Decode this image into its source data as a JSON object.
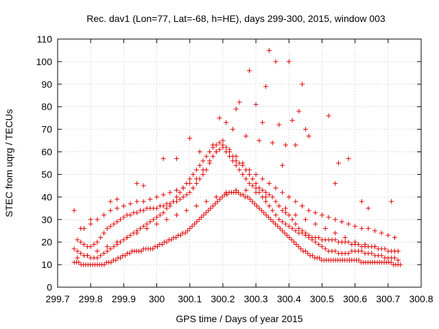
{
  "chart_data": {
    "type": "scatter",
    "title": "Rec. dav1 (Lon=77, Lat=-68, h=HE), days 299-300, 2015, window 003",
    "xlabel": "GPS time / Days of year 2015",
    "ylabel": "STEC from uqrg / TECUs",
    "xlim": [
      299.7,
      300.8
    ],
    "ylim": [
      0,
      110
    ],
    "xticks": [
      "299.7",
      "299.8",
      "299.9",
      "300",
      "300.1",
      "300.2",
      "300.3",
      "300.4",
      "300.5",
      "300.6",
      "300.7",
      "300.8"
    ],
    "yticks": [
      "0",
      "10",
      "20",
      "30",
      "40",
      "50",
      "60",
      "70",
      "80",
      "90",
      "100",
      "110"
    ],
    "grid": true,
    "marker": "plus",
    "color": "#e00000",
    "series": [
      {
        "x": [
          299.75,
          299.757,
          299.764,
          299.771,
          299.778,
          299.785,
          299.792,
          299.799,
          299.806,
          299.813,
          299.82,
          299.827,
          299.834,
          299.841,
          299.848,
          299.855,
          299.862,
          299.869,
          299.876,
          299.883,
          299.89,
          299.897,
          299.904,
          299.911,
          299.918,
          299.925,
          299.932,
          299.939,
          299.946,
          299.953,
          299.96,
          299.967,
          299.974,
          299.981,
          299.988,
          299.995,
          300.002,
          300.009,
          300.016,
          300.023,
          300.03,
          300.037,
          300.044,
          300.051,
          300.058,
          300.065,
          300.072,
          300.079,
          300.086,
          300.093,
          300.1,
          300.107,
          300.114,
          300.121,
          300.128,
          300.135,
          300.142,
          300.149,
          300.156,
          300.163,
          300.17,
          300.177,
          300.184,
          300.191,
          300.198,
          300.205,
          300.212,
          300.219,
          300.226,
          300.233,
          300.24,
          300.247,
          300.254,
          300.261,
          300.268,
          300.275,
          300.282,
          300.289,
          300.296,
          300.303,
          300.31,
          300.317,
          300.324,
          300.331,
          300.338,
          300.345,
          300.352,
          300.359,
          300.366,
          300.373,
          300.38,
          300.387,
          300.394,
          300.401,
          300.408,
          300.415,
          300.422,
          300.429,
          300.436,
          300.443,
          300.45,
          300.457,
          300.464,
          300.471,
          300.478,
          300.485,
          300.492,
          300.499,
          300.506,
          300.513,
          300.52,
          300.527,
          300.534,
          300.541,
          300.548,
          300.555,
          300.562,
          300.569,
          300.576,
          300.583,
          300.59,
          300.597,
          300.604,
          300.611,
          300.618,
          300.625,
          300.632,
          300.639,
          300.646,
          300.653,
          300.66,
          300.667,
          300.674,
          300.681,
          300.688,
          300.695,
          300.702,
          300.709,
          300.716,
          300.723,
          300.73,
          300.737
        ],
        "y": [
          11,
          11,
          11,
          10,
          10,
          10,
          10,
          10,
          10,
          10,
          10,
          10,
          10,
          10,
          11,
          11,
          11,
          12,
          12,
          13,
          13,
          14,
          14,
          15,
          15,
          16,
          16,
          16,
          16,
          16,
          17,
          17,
          17,
          17,
          17,
          18,
          18,
          19,
          19,
          20,
          20,
          21,
          21,
          22,
          22,
          23,
          23,
          24,
          24,
          25,
          26,
          27,
          28,
          29,
          30,
          31,
          32,
          33,
          34,
          35,
          36,
          37,
          38,
          39,
          40,
          41,
          41,
          42,
          42,
          42,
          42,
          42,
          41,
          41,
          40,
          40,
          39,
          38,
          37,
          36,
          35,
          34,
          33,
          32,
          31,
          30,
          29,
          28,
          27,
          26,
          25,
          24,
          23,
          22,
          21,
          20,
          19,
          18,
          17,
          16,
          16,
          15,
          14,
          14,
          13,
          13,
          13,
          12,
          12,
          12,
          12,
          12,
          12,
          12,
          12,
          12,
          12,
          12,
          12,
          12,
          12,
          12,
          12,
          12,
          11,
          11,
          11,
          11,
          11,
          11,
          11,
          11,
          11,
          11,
          11,
          11,
          11,
          11,
          10,
          10,
          10,
          10
        ]
      },
      {
        "x": [
          299.75,
          299.76,
          299.77,
          299.78,
          299.79,
          299.8,
          299.81,
          299.82,
          299.83,
          299.84,
          299.85,
          299.86,
          299.87,
          299.88,
          299.89,
          299.9,
          299.91,
          299.92,
          299.93,
          299.94,
          299.95,
          299.96,
          299.97,
          299.98,
          299.99,
          300.0,
          300.01,
          300.02,
          300.03,
          300.04,
          300.05,
          300.06,
          300.07,
          300.08,
          300.09,
          300.1,
          300.11,
          300.12,
          300.13,
          300.14,
          300.15,
          300.16,
          300.17,
          300.18,
          300.19,
          300.2,
          300.21,
          300.22,
          300.23,
          300.24,
          300.25,
          300.26,
          300.27,
          300.28,
          300.29,
          300.3,
          300.31,
          300.32,
          300.33,
          300.34,
          300.35,
          300.36,
          300.37,
          300.38,
          300.39,
          300.4,
          300.41,
          300.42,
          300.43,
          300.44,
          300.45,
          300.46,
          300.47,
          300.48,
          300.49,
          300.5,
          300.51,
          300.52,
          300.53,
          300.54,
          300.55,
          300.56,
          300.57,
          300.58,
          300.59,
          300.6,
          300.61,
          300.62,
          300.63,
          300.64,
          300.65,
          300.66,
          300.67,
          300.68,
          300.69,
          300.7,
          300.71,
          300.72,
          300.73
        ],
        "y": [
          17,
          16,
          15,
          14,
          14,
          13,
          13,
          13,
          14,
          15,
          16,
          17,
          18,
          19,
          20,
          21,
          22,
          23,
          24,
          25,
          26,
          27,
          28,
          29,
          30,
          31,
          32,
          33,
          35,
          36,
          38,
          40,
          42,
          44,
          46,
          48,
          50,
          52,
          54,
          56,
          58,
          60,
          62,
          63,
          64,
          65,
          62,
          60,
          58,
          56,
          55,
          54,
          52,
          50,
          48,
          46,
          44,
          43,
          42,
          41,
          40,
          38,
          36,
          34,
          33,
          32,
          30,
          28,
          26,
          25,
          24,
          22,
          21,
          20,
          19,
          18,
          17,
          16,
          16,
          16,
          15,
          15,
          15,
          15,
          16,
          16,
          16,
          16,
          15,
          15,
          15,
          14,
          14,
          14,
          13,
          13,
          13,
          13,
          12
        ]
      },
      {
        "x": [
          299.76,
          299.77,
          299.78,
          299.79,
          299.8,
          299.81,
          299.82,
          299.83,
          299.84,
          299.85,
          299.86,
          299.87,
          299.88,
          299.89,
          299.9,
          299.91,
          299.92,
          299.93,
          299.94,
          299.95,
          299.96,
          299.97,
          299.98,
          299.99,
          300.0,
          300.01,
          300.02,
          300.03,
          300.04,
          300.05,
          300.06,
          300.07,
          300.08,
          300.09,
          300.1,
          300.11,
          300.12,
          300.13,
          300.14,
          300.15,
          300.16,
          300.17,
          300.18,
          300.19,
          300.2,
          300.21,
          300.22,
          300.23,
          300.24,
          300.25,
          300.26,
          300.27,
          300.28,
          300.29,
          300.3,
          300.31,
          300.32,
          300.33,
          300.34,
          300.35,
          300.36,
          300.37,
          300.38,
          300.39,
          300.4,
          300.41,
          300.42,
          300.43,
          300.44,
          300.45,
          300.46,
          300.47,
          300.48,
          300.49,
          300.5,
          300.51,
          300.52,
          300.53,
          300.54,
          300.55,
          300.56,
          300.57,
          300.58,
          300.59,
          300.6,
          300.61,
          300.62,
          300.63,
          300.64,
          300.65,
          300.66,
          300.67,
          300.68,
          300.69,
          300.7,
          300.71,
          300.72,
          300.73
        ],
        "y": [
          21,
          20,
          19,
          18,
          18,
          19,
          20,
          22,
          24,
          26,
          27,
          28,
          29,
          30,
          31,
          32,
          32,
          33,
          33,
          34,
          34,
          35,
          35,
          35,
          35,
          36,
          36,
          37,
          37,
          38,
          38,
          39,
          40,
          41,
          42,
          44,
          46,
          48,
          50,
          52,
          55,
          58,
          60,
          61,
          62,
          60,
          58,
          56,
          54,
          52,
          50,
          48,
          46,
          45,
          44,
          42,
          40,
          38,
          36,
          34,
          32,
          30,
          29,
          28,
          27,
          26,
          25,
          24,
          24,
          23,
          23,
          22,
          22,
          22,
          21,
          21,
          21,
          21,
          21,
          20,
          20,
          20,
          20,
          19,
          19,
          19,
          18,
          18,
          18,
          18,
          18,
          17,
          17,
          17,
          16,
          16,
          16,
          16
        ]
      },
      {
        "x": [
          299.78,
          299.8,
          299.82,
          299.84,
          299.86,
          299.88,
          299.9,
          299.92,
          299.94,
          299.96,
          299.98,
          300.0,
          300.02,
          300.04,
          300.06,
          300.08,
          300.1,
          300.12,
          300.14,
          300.16,
          300.18,
          300.2,
          300.22,
          300.24,
          300.26,
          300.28,
          300.3,
          300.32,
          300.34,
          300.36,
          300.38,
          300.4,
          300.42,
          300.44,
          300.46,
          300.48,
          300.5,
          300.52,
          300.54,
          300.56,
          300.58,
          300.6,
          300.62,
          300.64,
          300.66,
          300.68,
          300.7,
          300.72
        ],
        "y": [
          26,
          28,
          30,
          32,
          34,
          35,
          36,
          37,
          38,
          38,
          39,
          40,
          41,
          42,
          43,
          44,
          46,
          48,
          52,
          56,
          60,
          63,
          61,
          58,
          55,
          52,
          50,
          48,
          46,
          44,
          42,
          40,
          38,
          36,
          34,
          33,
          32,
          31,
          30,
          29,
          28,
          27,
          26,
          26,
          25,
          24,
          23,
          22
        ]
      },
      {
        "x": [
          299.76,
          299.79,
          299.82,
          299.85,
          299.88,
          299.91,
          299.94,
          299.97,
          300.0,
          300.03,
          300.06,
          300.09,
          300.12,
          300.15,
          300.18,
          300.21,
          300.24,
          300.27,
          300.3,
          300.33,
          300.36,
          300.39,
          300.42,
          300.45,
          300.48,
          300.51,
          300.54,
          300.57,
          300.6,
          300.63,
          300.66,
          300.69,
          300.72
        ],
        "y": [
          13,
          14,
          16,
          18,
          20,
          22,
          24,
          26,
          28,
          30,
          32,
          34,
          36,
          38,
          40,
          42,
          43,
          43,
          42,
          40,
          38,
          35,
          32,
          30,
          28,
          26,
          24,
          22,
          20,
          19,
          18,
          17,
          16
        ]
      },
      {
        "x": [
          299.75,
          299.77,
          299.8,
          299.86,
          299.88,
          299.94,
          299.96,
          300.02,
          300.06,
          300.1,
          300.13,
          300.17,
          300.19,
          300.21,
          300.23,
          300.24,
          300.25,
          300.27,
          300.28,
          300.3,
          300.31,
          300.32,
          300.33,
          300.34,
          300.35,
          300.36,
          300.37,
          300.38,
          300.39,
          300.4,
          300.41,
          300.42,
          300.43,
          300.44,
          300.45,
          300.46,
          300.52,
          300.54,
          300.55,
          300.58,
          300.62,
          300.64,
          300.71
        ],
        "y": [
          34,
          26,
          30,
          38,
          39,
          46,
          45,
          57,
          57,
          66,
          60,
          63,
          75,
          73,
          70,
          79,
          82,
          67,
          96,
          81,
          65,
          73,
          89,
          105,
          64,
          100,
          72,
          54,
          63,
          100,
          74,
          63,
          78,
          90,
          70,
          67,
          76,
          46,
          55,
          57,
          38,
          35,
          38
        ]
      }
    ]
  }
}
